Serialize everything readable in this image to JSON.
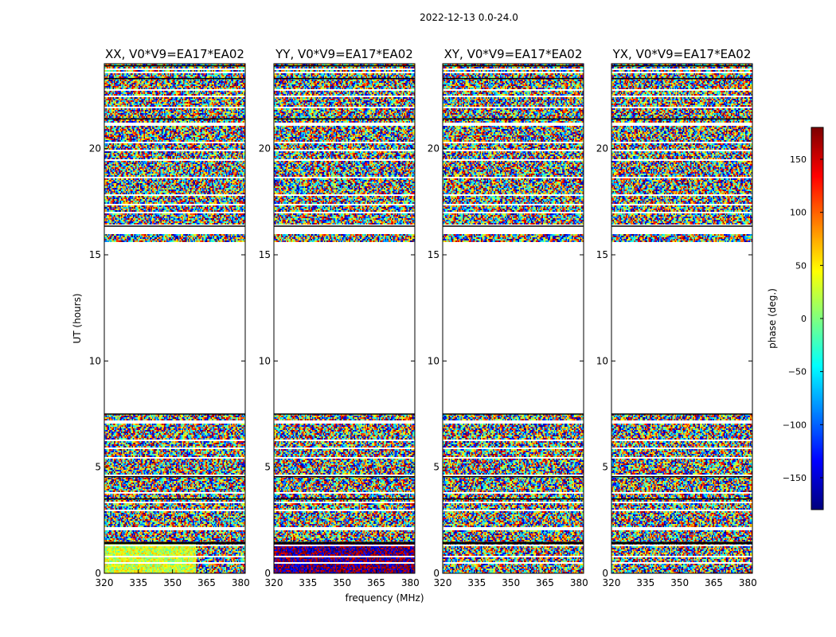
{
  "figure": {
    "suptitle": "2022-12-13 0.0-24.0"
  },
  "chart_data": {
    "type": "heatmap",
    "xlabel": "frequency (MHz)",
    "ylabel": "UT (hours)",
    "xlim": [
      320,
      382
    ],
    "ylim": [
      0,
      24
    ],
    "xticks": [
      320,
      335,
      350,
      365,
      380
    ],
    "yticks": [
      0,
      5,
      10,
      15,
      20
    ],
    "colorbar": {
      "label": "phase (deg.)",
      "range": [
        -180,
        180
      ],
      "ticks": [
        150,
        100,
        50,
        0,
        -50,
        -100,
        -150
      ],
      "tick_labels": [
        "150",
        "100",
        "50",
        "0",
        "−50",
        "−100",
        "−150"
      ],
      "colormap": [
        "#00007f",
        "#0000ff",
        "#007fff",
        "#00ffff",
        "#7fff7f",
        "#ffff00",
        "#ff7f00",
        "#ff0000",
        "#7f0000"
      ]
    },
    "panels": [
      {
        "title": "XX, V0*V9=EA17*EA02"
      },
      {
        "title": "YY, V0*V9=EA17*EA02"
      },
      {
        "title": "XY, V0*V9=EA17*EA02"
      },
      {
        "title": "YX, V0*V9=EA17*EA02"
      }
    ],
    "data_time_ranges_hours": [
      [
        0,
        7.5
      ],
      [
        15.6,
        16.0
      ],
      [
        16.4,
        24
      ]
    ],
    "blank_time_ranges_hours": [
      [
        7.5,
        15.6
      ]
    ],
    "flag_lines_hours": [
      1.4,
      1.45,
      3.5,
      4.55,
      7.5,
      16.35,
      21.4,
      23.3,
      23.9
    ]
  }
}
